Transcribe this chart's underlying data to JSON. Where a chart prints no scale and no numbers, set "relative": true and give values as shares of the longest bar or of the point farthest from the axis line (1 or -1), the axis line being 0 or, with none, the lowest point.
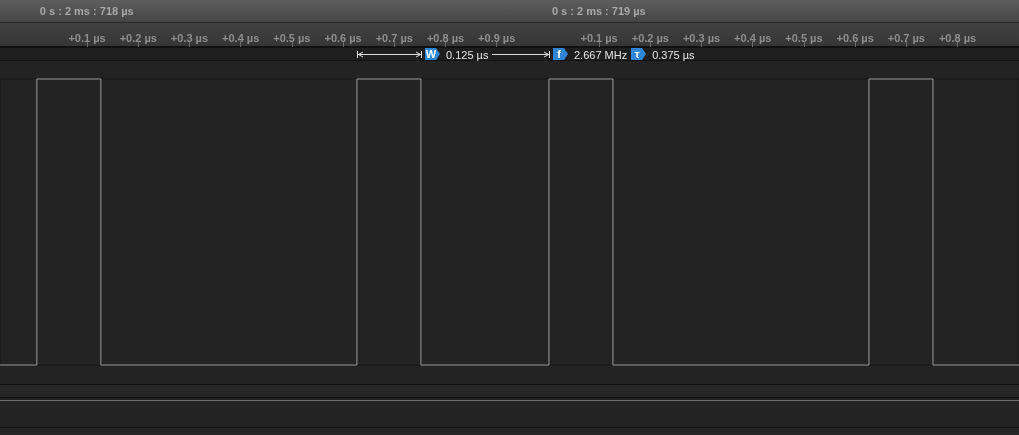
{
  "chart_data": {
    "type": "line",
    "relative": true,
    "x": [
      -0.07,
      0.002,
      0.002,
      0.127,
      0.127,
      0.627,
      0.627,
      0.752,
      0.752,
      1.002,
      1.002,
      1.127,
      1.127,
      1.627,
      1.627,
      1.752,
      1.752,
      1.92
    ],
    "series": [
      {
        "color": "#9c9c9c",
        "values": [
          0,
          0,
          1,
          1,
          0,
          0,
          1,
          1,
          0,
          0,
          1,
          1,
          0,
          0,
          1,
          1,
          0,
          0
        ]
      }
    ],
    "xlabel": "0 s : 2 ms : 718 µs",
    "xlim": [
      -0.07,
      1.92
    ],
    "xticks": [
      {
        "value": 0.1,
        "label": "+0.1 µs"
      },
      {
        "value": 0.2,
        "label": "+0.2 µs"
      },
      {
        "value": 0.3,
        "label": "+0.3 µs"
      },
      {
        "value": 0.4,
        "label": "+0.4 µs"
      },
      {
        "value": 0.5,
        "label": "+0.5 µs"
      },
      {
        "value": 0.6,
        "label": "+0.6 µs"
      },
      {
        "value": 0.7,
        "label": "+0.7 µs"
      },
      {
        "value": 0.8,
        "label": "+0.8 µs"
      },
      {
        "value": 0.9,
        "label": "+0.9 µs"
      }
    ],
    "x2label": "0 s : 2 ms : 719 µs",
    "x2lim": [
      -1.07,
      0.92
    ],
    "x2ticks": [
      {
        "value": 0.1,
        "label": "+0.1 µs"
      },
      {
        "value": 0.2,
        "label": "+0.2 µs"
      },
      {
        "value": 0.3,
        "label": "+0.3 µs"
      },
      {
        "value": 0.4,
        "label": "+0.4 µs"
      },
      {
        "value": 0.5,
        "label": "+0.5 µs"
      },
      {
        "value": 0.6,
        "label": "+0.6 µs"
      },
      {
        "value": 0.7,
        "label": "+0.7 µs"
      },
      {
        "value": 0.8,
        "label": "+0.8 µs"
      }
    ],
    "annotations": [
      "W",
      "0.125 µs",
      "f",
      "2.667 MHz",
      "τ",
      "0.375 µs"
    ]
  }
}
